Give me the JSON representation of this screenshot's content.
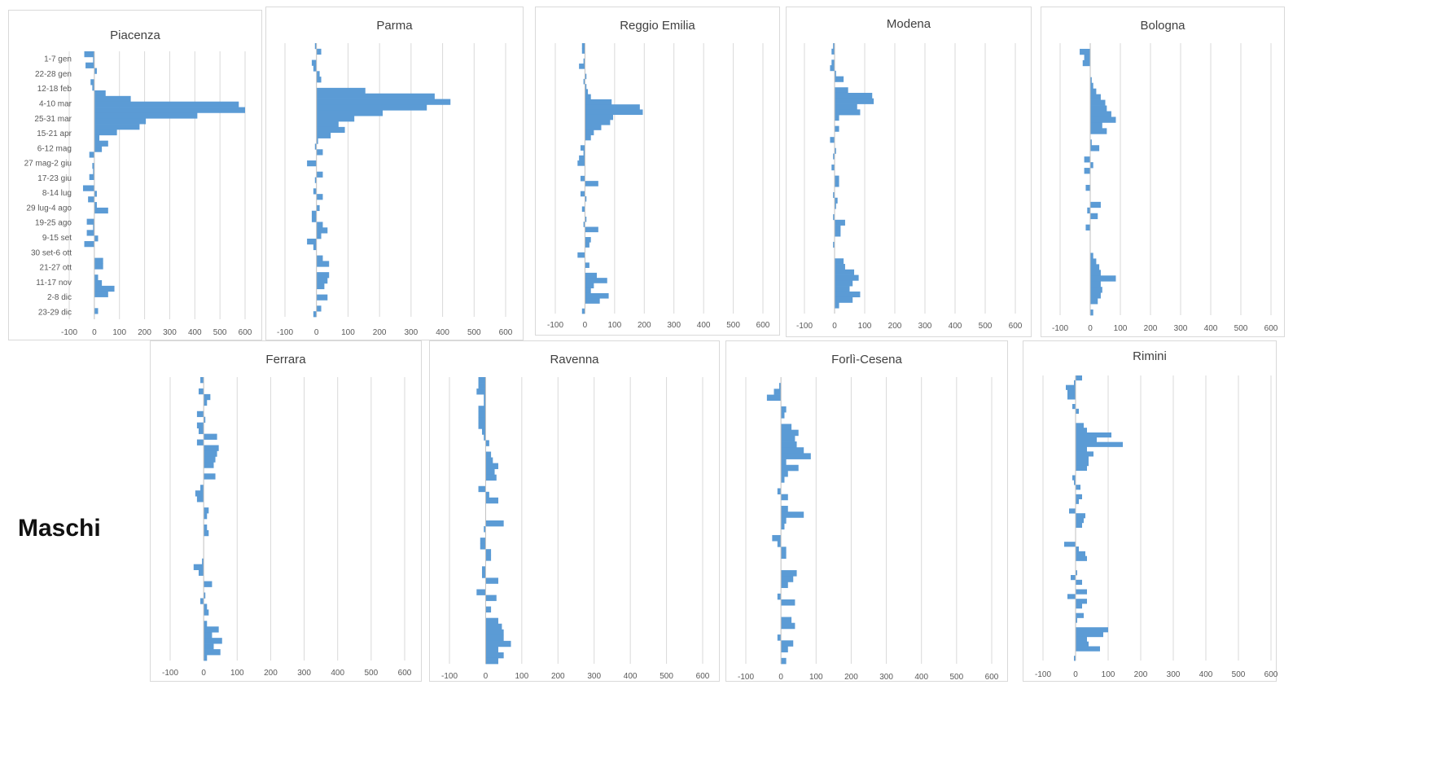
{
  "side_label": "Maschi",
  "colors": {
    "bar": "#5b9bd5",
    "grid": "#d9d9d9",
    "axis": "#bfbfbf",
    "text": "#595959"
  },
  "week_labels": [
    "1-7 gen",
    "22-28 gen",
    "12-18 feb",
    "4-10 mar",
    "25-31 mar",
    "15-21 apr",
    "6-12 mag",
    "27 mag-2 giu",
    "17-23 giu",
    "8-14 lug",
    "29 lug-4 ago",
    "19-25 ago",
    "9-15 set",
    "30 set-6 ott",
    "21-27 ott",
    "11-17 nov",
    "2-8 dic",
    "23-29 dic"
  ],
  "chart_data": [
    {
      "type": "bar",
      "orientation": "horizontal",
      "title": "Piacenza",
      "xlim": [
        -100,
        600
      ],
      "xticks": [
        -100,
        0,
        100,
        200,
        300,
        400,
        500,
        600
      ],
      "show_category_labels": true,
      "values": [
        -40,
        -5,
        -35,
        10,
        0,
        -15,
        -8,
        45,
        145,
        575,
        600,
        410,
        205,
        180,
        90,
        20,
        55,
        30,
        -20,
        0,
        -8,
        -5,
        -20,
        0,
        -45,
        10,
        -25,
        10,
        55,
        0,
        -30,
        -5,
        -30,
        15,
        -40,
        0,
        0,
        35,
        35,
        0,
        15,
        30,
        80,
        55,
        0,
        0,
        15,
        0
      ]
    },
    {
      "type": "bar",
      "orientation": "horizontal",
      "title": "Parma",
      "xlim": [
        -100,
        600
      ],
      "xticks": [
        -100,
        0,
        100,
        200,
        300,
        400,
        500,
        600
      ],
      "values": [
        -5,
        15,
        0,
        -15,
        -10,
        10,
        15,
        0,
        155,
        375,
        425,
        350,
        210,
        120,
        70,
        90,
        45,
        5,
        -5,
        20,
        0,
        -30,
        0,
        20,
        -5,
        0,
        -10,
        20,
        0,
        10,
        -15,
        -15,
        20,
        35,
        15,
        -30,
        -10,
        0,
        20,
        40,
        0,
        40,
        35,
        25,
        0,
        35,
        0,
        15,
        -10
      ]
    },
    {
      "type": "bar",
      "orientation": "horizontal",
      "title": "Reggio Emilia",
      "xlim": [
        -100,
        600
      ],
      "xticks": [
        -100,
        0,
        100,
        200,
        300,
        400,
        500,
        600
      ],
      "values": [
        -10,
        -10,
        0,
        -5,
        -20,
        0,
        5,
        -5,
        5,
        10,
        20,
        90,
        185,
        195,
        95,
        85,
        55,
        30,
        20,
        0,
        -15,
        -5,
        -20,
        -25,
        0,
        0,
        -15,
        45,
        0,
        -15,
        5,
        0,
        -10,
        0,
        5,
        -5,
        45,
        0,
        20,
        15,
        0,
        -25,
        0,
        15,
        0,
        40,
        75,
        30,
        20,
        80,
        50,
        0,
        -10
      ]
    },
    {
      "type": "bar",
      "orientation": "horizontal",
      "title": "Modena",
      "xlim": [
        -100,
        600
      ],
      "xticks": [
        -100,
        0,
        100,
        200,
        300,
        400,
        500,
        600
      ],
      "values": [
        -5,
        -10,
        0,
        -10,
        -15,
        5,
        30,
        0,
        45,
        125,
        130,
        75,
        85,
        15,
        0,
        15,
        0,
        -15,
        0,
        5,
        -5,
        0,
        -10,
        0,
        15,
        15,
        0,
        -5,
        10,
        5,
        0,
        -5,
        35,
        20,
        20,
        0,
        -5,
        0,
        0,
        30,
        35,
        65,
        80,
        60,
        50,
        85,
        60,
        15,
        0
      ]
    },
    {
      "type": "bar",
      "orientation": "horizontal",
      "title": "Bologna",
      "xlim": [
        -100,
        600
      ],
      "xticks": [
        -100,
        0,
        100,
        200,
        300,
        400,
        500,
        600
      ],
      "values": [
        0,
        -35,
        -20,
        -25,
        0,
        0,
        5,
        10,
        20,
        35,
        50,
        55,
        70,
        85,
        40,
        55,
        0,
        5,
        30,
        0,
        -20,
        10,
        -20,
        0,
        0,
        -15,
        0,
        0,
        35,
        -10,
        25,
        0,
        -15,
        0,
        0,
        0,
        0,
        10,
        20,
        30,
        35,
        85,
        35,
        40,
        35,
        25,
        0,
        10
      ]
    },
    {
      "type": "bar",
      "orientation": "horizontal",
      "title": "Ferrara",
      "xlim": [
        -100,
        600
      ],
      "xticks": [
        -100,
        0,
        100,
        200,
        300,
        400,
        500,
        600
      ],
      "values": [
        -10,
        0,
        -15,
        20,
        10,
        0,
        -20,
        5,
        -20,
        -15,
        40,
        -20,
        45,
        40,
        35,
        30,
        0,
        35,
        0,
        -10,
        -25,
        -20,
        0,
        15,
        10,
        0,
        10,
        15,
        0,
        0,
        0,
        0,
        -5,
        -30,
        -15,
        0,
        25,
        0,
        5,
        -10,
        10,
        15,
        0,
        10,
        45,
        25,
        55,
        30,
        50,
        10
      ]
    },
    {
      "type": "bar",
      "orientation": "horizontal",
      "title": "Ravenna",
      "xlim": [
        -100,
        600
      ],
      "xticks": [
        -100,
        0,
        100,
        200,
        300,
        400,
        500,
        600
      ],
      "values": [
        -20,
        -20,
        -25,
        -5,
        -5,
        -20,
        -20,
        -20,
        -20,
        -10,
        -5,
        10,
        0,
        15,
        20,
        35,
        25,
        30,
        0,
        -20,
        10,
        35,
        0,
        0,
        0,
        50,
        -5,
        0,
        -15,
        -15,
        15,
        15,
        0,
        -10,
        -10,
        35,
        0,
        -25,
        30,
        0,
        15,
        0,
        35,
        45,
        50,
        50,
        70,
        35,
        50,
        35
      ]
    },
    {
      "type": "bar",
      "orientation": "horizontal",
      "title": "Forlì-Cesena",
      "xlim": [
        -100,
        600
      ],
      "xticks": [
        -100,
        0,
        100,
        200,
        300,
        400,
        500,
        600
      ],
      "values": [
        0,
        -5,
        -20,
        -40,
        0,
        15,
        10,
        0,
        30,
        50,
        40,
        45,
        65,
        85,
        15,
        50,
        20,
        10,
        0,
        -10,
        20,
        0,
        20,
        65,
        15,
        10,
        0,
        -25,
        -10,
        15,
        15,
        0,
        0,
        45,
        35,
        20,
        0,
        -10,
        40,
        0,
        0,
        30,
        40,
        0,
        -10,
        35,
        20,
        0,
        15
      ]
    },
    {
      "type": "bar",
      "orientation": "horizontal",
      "title": "Rimini",
      "xlim": [
        -100,
        600
      ],
      "xticks": [
        -100,
        0,
        100,
        200,
        300,
        400,
        500,
        600
      ],
      "values": [
        20,
        -5,
        -30,
        -25,
        -25,
        0,
        -10,
        10,
        0,
        0,
        25,
        35,
        110,
        65,
        145,
        35,
        55,
        40,
        40,
        35,
        0,
        -10,
        -5,
        15,
        0,
        20,
        10,
        0,
        -20,
        30,
        25,
        20,
        0,
        0,
        0,
        -35,
        10,
        30,
        35,
        0,
        0,
        5,
        -15,
        20,
        0,
        35,
        -25,
        35,
        20,
        0,
        25,
        5,
        0,
        100,
        85,
        35,
        40,
        75,
        0,
        -5
      ]
    }
  ]
}
